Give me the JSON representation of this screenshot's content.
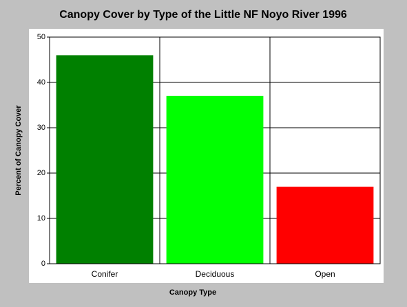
{
  "chart_data": {
    "type": "bar",
    "title": "Canopy Cover by Type of the Little NF Noyo River 1996",
    "x_label": "Canopy Type",
    "y_label": "Percent of Canopy Cover",
    "categories": [
      "Conifer",
      "Deciduous",
      "Open"
    ],
    "values": [
      46,
      37,
      17
    ],
    "colors": [
      "#008000",
      "#00ff00",
      "#ff0000"
    ],
    "ylim": [
      0,
      50
    ],
    "yticks": [
      0,
      10,
      20,
      30,
      40,
      50
    ],
    "grid": true
  }
}
